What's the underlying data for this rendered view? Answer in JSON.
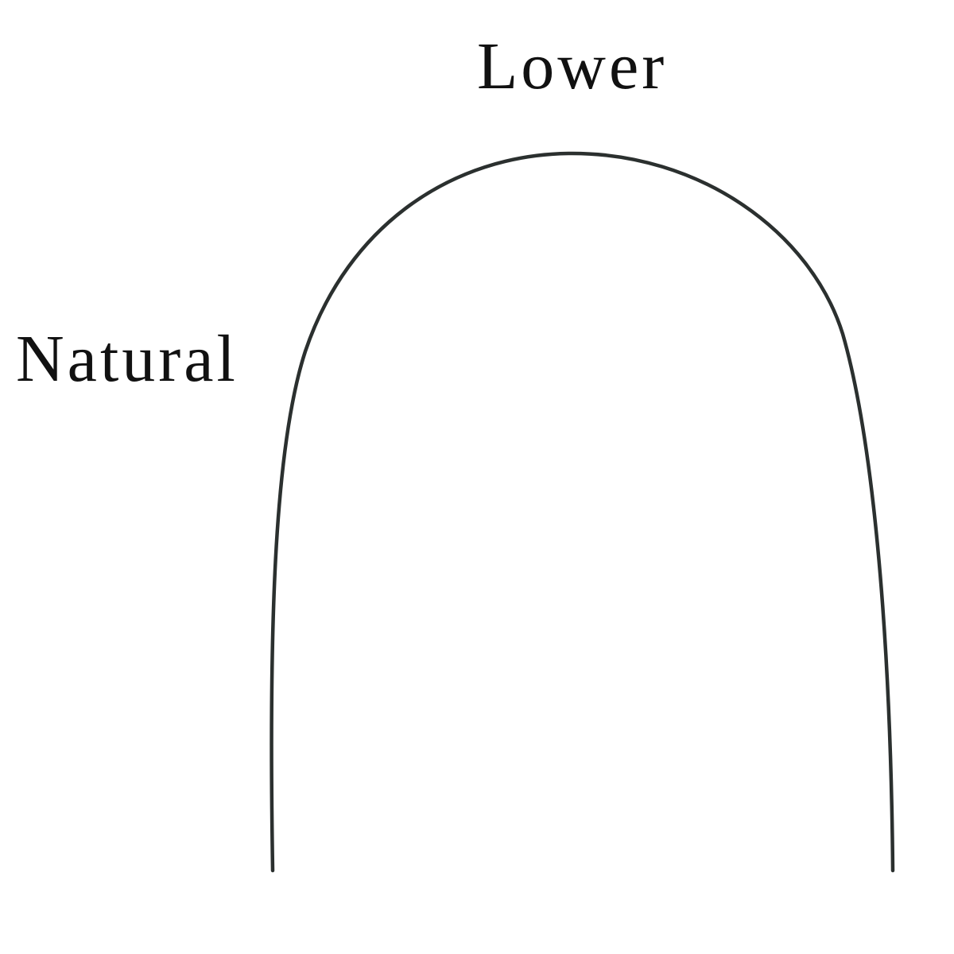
{
  "labels": {
    "arch": "Lower",
    "form": "Natural"
  },
  "colors": {
    "wire": "#2b302f",
    "text": "#111111",
    "background": "#ffffff"
  }
}
